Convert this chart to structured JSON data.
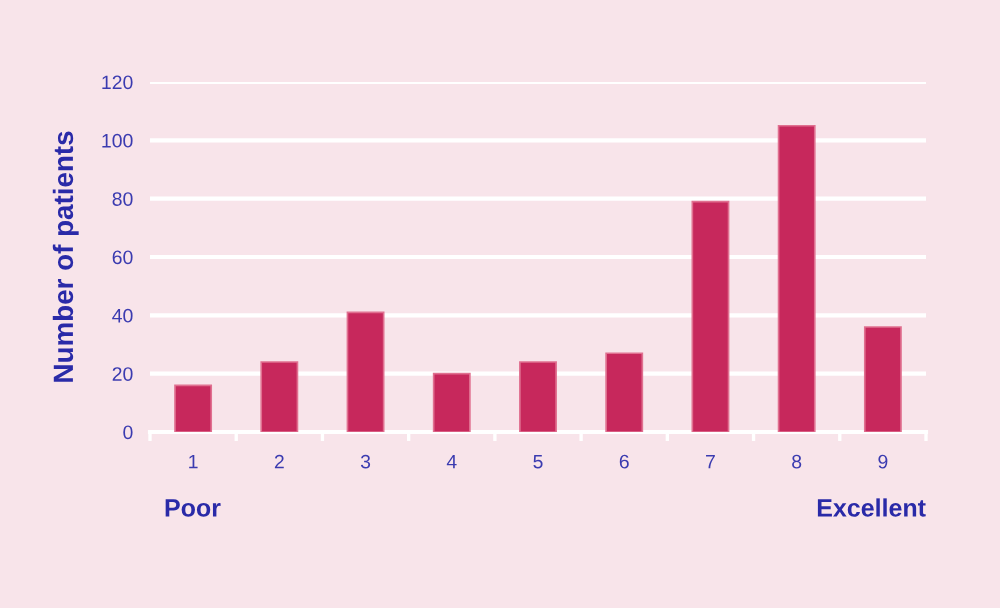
{
  "chart_data": {
    "type": "bar",
    "ylabel": "Number of patients",
    "categories": [
      "1",
      "2",
      "3",
      "4",
      "5",
      "6",
      "7",
      "8",
      "9"
    ],
    "values": [
      16,
      24,
      41,
      20,
      24,
      27,
      79,
      105,
      36
    ],
    "color": "#c7285c",
    "ylim": [
      0,
      120
    ],
    "yticks": [
      0,
      20,
      40,
      60,
      80,
      100,
      120
    ],
    "grid": "y",
    "annotations": [
      "Poor",
      "Excellent"
    ]
  }
}
